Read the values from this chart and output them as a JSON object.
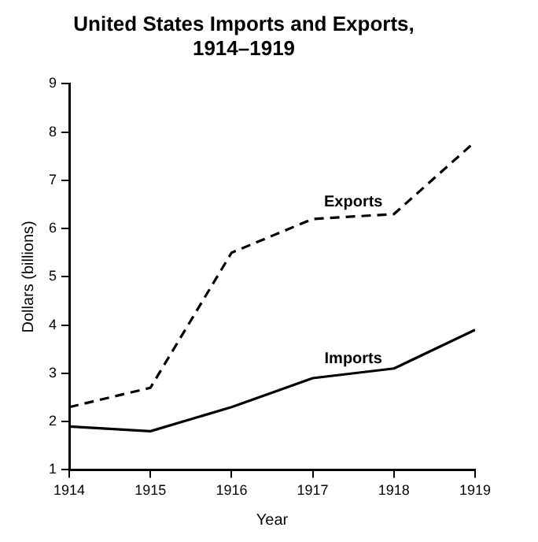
{
  "chart_data": {
    "type": "line",
    "title": "United States Imports and Exports,\n1914–1919",
    "xlabel": "Year",
    "ylabel": "Dollars (billions)",
    "x": [
      1914,
      1915,
      1916,
      1917,
      1918,
      1919
    ],
    "series": [
      {
        "name": "Exports",
        "color": "#000000",
        "line_style": "dashed",
        "values": [
          2.3,
          2.7,
          5.5,
          6.2,
          6.3,
          7.8
        ]
      },
      {
        "name": "Imports",
        "color": "#000000",
        "line_style": "solid",
        "values": [
          1.9,
          1.8,
          2.3,
          2.9,
          3.1,
          3.9
        ]
      }
    ],
    "xlim": [
      1914,
      1919
    ],
    "xticks": [
      1914,
      1915,
      1916,
      1917,
      1918,
      1919
    ],
    "ylim": [
      1,
      9
    ],
    "yticks": [
      1,
      2,
      3,
      4,
      5,
      6,
      7,
      8,
      9
    ],
    "grid": false,
    "legend": false,
    "marker": "none"
  }
}
